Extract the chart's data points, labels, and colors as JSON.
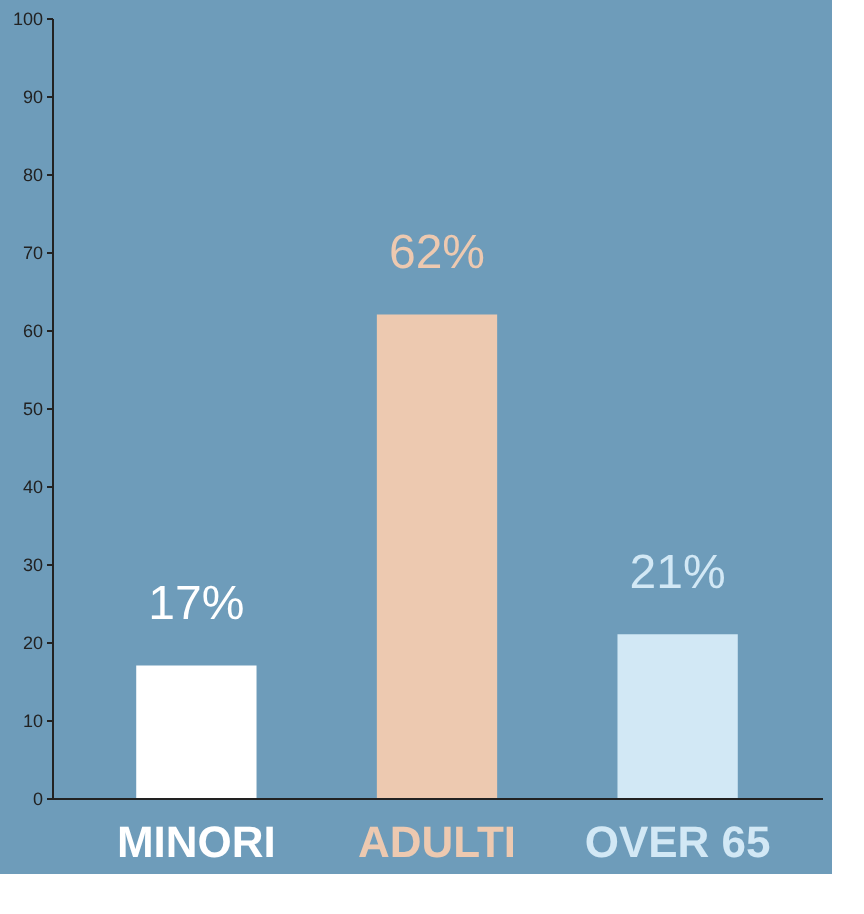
{
  "chart_data": {
    "type": "bar",
    "categories": [
      "MINORI",
      "ADULTI",
      "OVER 65"
    ],
    "values": [
      17,
      62,
      21
    ],
    "colors": [
      "#ffffff",
      "#edc9b0",
      "#d2e8f5"
    ],
    "value_labels": [
      "17%",
      "62%",
      "21%"
    ],
    "ylim": [
      0,
      100
    ],
    "yticks": [
      0,
      10,
      20,
      30,
      40,
      50,
      60,
      70,
      80,
      90,
      100
    ],
    "grid": false
  }
}
